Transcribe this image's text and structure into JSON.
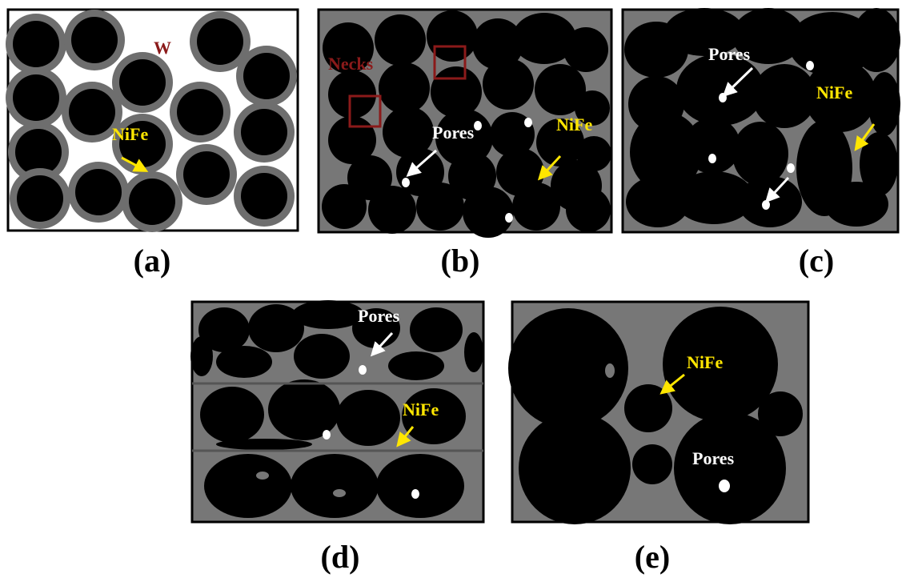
{
  "panels": [
    {
      "label": "(a)",
      "annotations": [
        "W",
        "NiFe"
      ]
    },
    {
      "label": "(b)",
      "annotations": [
        "Necks",
        "Pores",
        "NiFe"
      ]
    },
    {
      "label": "(c)",
      "annotations": [
        "Pores",
        "NiFe"
      ]
    },
    {
      "label": "(d)",
      "annotations": [
        "Pores",
        "NiFe"
      ]
    },
    {
      "label": "(e)",
      "annotations": [
        "NiFe",
        "Pores"
      ]
    }
  ]
}
